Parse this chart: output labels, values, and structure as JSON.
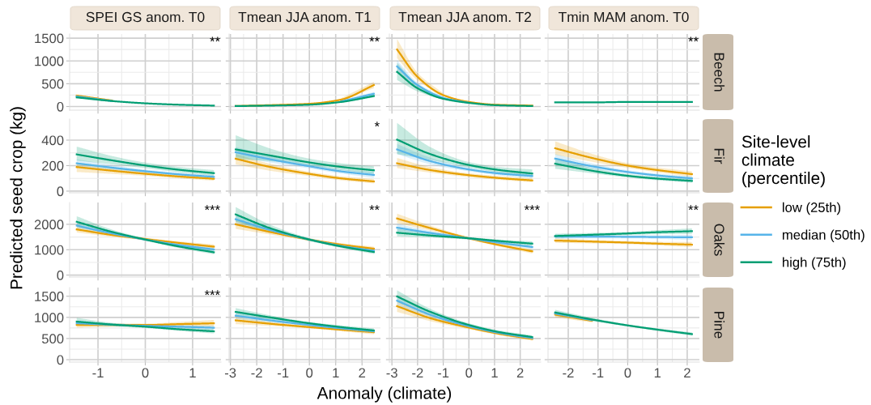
{
  "chart_data": [
    {
      "type": "line",
      "title": "SPEI GS anom. T0",
      "xlabel": "Anomaly (climate)",
      "ylabel": "Predicted seed crop (kg)",
      "legend": "right",
      "legend_title": "Site-level climate (percentile)",
      "x": [
        -1.45,
        -0.7,
        0,
        0.7,
        1.45
      ],
      "series": [
        {
          "name": "low (25th)",
          "color": "#e69f00",
          "values": [
            240,
            130,
            null,
            null,
            null
          ]
        },
        {
          "name": "median (50th)",
          "color": "#56b4e9",
          "values": [
            220,
            120,
            null,
            null,
            null
          ]
        },
        {
          "name": "high (75th)",
          "color": "#009e73",
          "values": [
            200,
            120,
            70,
            40,
            20
          ]
        }
      ],
      "xlim": [
        -1.6,
        1.6
      ],
      "xticks": [
        -1,
        0,
        1
      ],
      "ylim": [
        -80,
        1590
      ],
      "yticks": [
        0,
        500,
        1000,
        1500
      ],
      "grid": true,
      "tick_labels": "y",
      "annotations": [
        "**"
      ]
    },
    {
      "type": "line",
      "title": "Tmean JJA anom. T1",
      "x": [
        -2.8,
        -1.5,
        0,
        1.2,
        2.45
      ],
      "series": [
        {
          "color": "#e69f00",
          "values": [
            10,
            30,
            60,
            150,
            470
          ],
          "lower": [
            null,
            null,
            null,
            130,
            400
          ],
          "upper": [
            null,
            null,
            null,
            180,
            540
          ]
        },
        {
          "color": "#56b4e9",
          "values": [
            null,
            null,
            null,
            110,
            280
          ],
          "lower": [
            null,
            null,
            null,
            100,
            250
          ],
          "upper": [
            null,
            null,
            null,
            130,
            320
          ]
        },
        {
          "color": "#009e73",
          "values": [
            10,
            20,
            40,
            100,
            230
          ],
          "lower": [
            null,
            null,
            null,
            80,
            200
          ],
          "upper": [
            null,
            null,
            null,
            120,
            270
          ]
        }
      ],
      "xlim": [
        -3.05,
        2.7
      ],
      "xticks": [
        -3,
        -2,
        -1,
        0,
        1,
        2
      ],
      "ylim": [
        -80,
        1590
      ],
      "yticks": [
        0,
        500,
        1000,
        1500
      ],
      "grid": true,
      "tick_labels": false,
      "annotations": [
        "**"
      ]
    },
    {
      "type": "line",
      "title": "Tmean JJA anom. T2",
      "x": [
        -2.8,
        -2,
        -1,
        0,
        1,
        2.47
      ],
      "series": [
        {
          "color": "#e69f00",
          "values": [
            1250,
            650,
            250,
            100,
            40,
            20
          ],
          "lower": [
            1060,
            570,
            220,
            null,
            null,
            null
          ],
          "upper": [
            1480,
            740,
            290,
            null,
            null,
            null
          ]
        },
        {
          "color": "#56b4e9",
          "values": [
            880,
            470,
            190,
            80,
            null,
            null
          ],
          "lower": [
            760,
            420,
            170,
            null,
            null,
            null
          ],
          "upper": [
            1010,
            520,
            210,
            null,
            null,
            null
          ]
        },
        {
          "color": "#009e73",
          "values": [
            760,
            400,
            170,
            80,
            30,
            10
          ],
          "lower": [
            580,
            330,
            150,
            null,
            null,
            null
          ],
          "upper": [
            960,
            480,
            200,
            null,
            null,
            null
          ]
        }
      ],
      "xlim": [
        -3.1,
        2.8
      ],
      "xticks": [
        -3,
        -2,
        -1,
        0,
        1,
        2
      ],
      "ylim": [
        -80,
        1590
      ],
      "yticks": [
        0,
        500,
        1000,
        1500
      ],
      "grid": true,
      "tick_labels": false
    },
    {
      "type": "line",
      "title": "Tmin MAM anom. T0",
      "y2label": "Beech",
      "x": [
        -2.44,
        -1.2,
        0,
        1,
        2.16
      ],
      "series": [
        {
          "color": "#009e73",
          "values": [
            90,
            90,
            100,
            100,
            100
          ]
        }
      ],
      "xlim": [
        -2.68,
        2.41
      ],
      "xticks": [
        -2,
        -1,
        0,
        1,
        2
      ],
      "ylim": [
        -80,
        1590
      ],
      "yticks": [
        0,
        500,
        1000,
        1500
      ],
      "grid": true,
      "tick_labels": false,
      "annotations": [
        "**"
      ]
    },
    {
      "type": "line",
      "x": [
        -1.45,
        -0.7,
        0,
        0.7,
        1.45
      ],
      "series": [
        {
          "name": "low (25th)",
          "color": "#e69f00",
          "values": [
            189,
            160,
            136,
            115,
            97
          ],
          "lower": [
            150,
            135,
            120,
            100,
            82
          ],
          "upper": [
            215,
            183,
            152,
            130,
            112
          ]
        },
        {
          "name": "median (50th)",
          "color": "#56b4e9",
          "values": [
            218,
            184,
            156,
            132,
            112
          ],
          "lower": [
            190,
            165,
            143,
            120,
            100
          ],
          "upper": [
            250,
            205,
            170,
            145,
            125
          ]
        },
        {
          "name": "high (75th)",
          "color": "#009e73",
          "values": [
            288,
            241,
            201,
            168,
            141
          ],
          "lower": [
            240,
            210,
            180,
            148,
            120
          ],
          "upper": [
            349,
            275,
            224,
            190,
            165
          ]
        }
      ],
      "xlim": [
        -1.6,
        1.6
      ],
      "xticks": [
        -1,
        0,
        1
      ],
      "ylim": [
        -13,
        565
      ],
      "yticks": [
        0,
        200,
        400
      ],
      "grid": true,
      "tick_labels": "y"
    },
    {
      "type": "line",
      "x": [
        -2.8,
        -1.5,
        0,
        1.2,
        2.45
      ],
      "series": [
        {
          "name": "low (25th)",
          "color": "#e69f00",
          "values": [
            254,
            190,
            135,
            100,
            76
          ],
          "lower": [
            210,
            160,
            118,
            85,
            60
          ],
          "upper": [
            290,
            215,
            152,
            117,
            95
          ]
        },
        {
          "name": "median (50th)",
          "color": "#56b4e9",
          "values": [
            305,
            250,
            195,
            155,
            127
          ],
          "lower": [
            270,
            225,
            178,
            138,
            105
          ],
          "upper": [
            345,
            278,
            212,
            172,
            150
          ]
        },
        {
          "name": "high (75th)",
          "color": "#009e73",
          "values": [
            327,
            280,
            225,
            190,
            163
          ],
          "lower": [
            250,
            235,
            200,
            165,
            135
          ],
          "upper": [
            438,
            335,
            255,
            218,
            195
          ]
        }
      ],
      "xlim": [
        -3.05,
        2.7
      ],
      "xticks": [
        -3,
        -2,
        -1,
        0,
        1,
        2
      ],
      "ylim": [
        -13,
        565
      ],
      "yticks": [
        0,
        200,
        400
      ],
      "grid": true,
      "tick_labels": false,
      "annotations": [
        "*"
      ]
    },
    {
      "type": "line",
      "x": [
        -2.8,
        -1.5,
        0,
        1.2,
        2.47
      ],
      "series": [
        {
          "name": "low (25th)",
          "color": "#e69f00",
          "values": [
            218,
            165,
            125,
            102,
            84
          ],
          "lower": [
            180,
            145,
            110,
            88,
            70
          ],
          "upper": [
            260,
            188,
            140,
            118,
            100
          ]
        },
        {
          "name": "median (50th)",
          "color": "#56b4e9",
          "values": [
            327,
            235,
            170,
            138,
            119
          ],
          "lower": [
            290,
            210,
            155,
            123,
            100
          ],
          "upper": [
            370,
            262,
            185,
            153,
            140
          ]
        },
        {
          "name": "high (75th)",
          "color": "#009e73",
          "values": [
            404,
            290,
            205,
            165,
            138
          ],
          "lower": [
            290,
            245,
            185,
            145,
            110
          ],
          "upper": [
            535,
            345,
            228,
            188,
            170
          ]
        }
      ],
      "xlim": [
        -3.1,
        2.8
      ],
      "xticks": [
        -3,
        -2,
        -1,
        0,
        1,
        2
      ],
      "ylim": [
        -13,
        565
      ],
      "yticks": [
        0,
        200,
        400
      ],
      "grid": true,
      "tick_labels": false
    },
    {
      "type": "line",
      "y2label": "Fir",
      "x": [
        -2.44,
        -1.2,
        0,
        1,
        2.16
      ],
      "series": [
        {
          "name": "low (25th)",
          "color": "#e69f00",
          "values": [
            336,
            260,
            200,
            165,
            133
          ],
          "lower": [
            285,
            230,
            182,
            148,
            112
          ],
          "upper": [
            390,
            292,
            220,
            185,
            155
          ]
        },
        {
          "name": "median (50th)",
          "color": "#56b4e9",
          "values": [
            255,
            195,
            150,
            123,
            100
          ],
          "lower": [
            220,
            175,
            137,
            110,
            85
          ],
          "upper": [
            292,
            217,
            164,
            137,
            116
          ]
        },
        {
          "name": "high (75th)",
          "color": "#009e73",
          "values": [
            215,
            160,
            120,
            98,
            80
          ],
          "lower": [
            175,
            140,
            107,
            85,
            66
          ],
          "upper": [
            258,
            182,
            134,
            112,
            96
          ]
        }
      ],
      "xlim": [
        -2.68,
        2.41
      ],
      "xticks": [
        -2,
        -1,
        0,
        1,
        2
      ],
      "ylim": [
        -13,
        565
      ],
      "yticks": [
        0,
        200,
        400
      ],
      "grid": true,
      "tick_labels": false
    },
    {
      "type": "line",
      "x": [
        -1.45,
        -0.7,
        0,
        0.7,
        1.45
      ],
      "series": [
        {
          "name": "low (25th)",
          "color": "#e69f00",
          "values": [
            1800,
            1580,
            1420,
            1270,
            1120
          ],
          "lower": [
            1680,
            1510,
            1370,
            1210,
            1030
          ],
          "upper": [
            1930,
            1650,
            1470,
            1330,
            1210
          ]
        },
        {
          "name": "median (50th)",
          "color": "#56b4e9",
          "values": [
            1950,
            1640,
            1400,
            1190,
            1010
          ],
          "lower": [
            1820,
            1580,
            1360,
            1140,
            940
          ],
          "upper": [
            2090,
            1700,
            1440,
            1240,
            1080
          ]
        },
        {
          "name": "high (75th)",
          "color": "#009e73",
          "values": [
            2100,
            1700,
            1400,
            1130,
            900
          ],
          "lower": [
            1900,
            1620,
            1350,
            1070,
            820
          ],
          "upper": [
            2320,
            1790,
            1450,
            1190,
            980
          ]
        }
      ],
      "xlim": [
        -1.6,
        1.6
      ],
      "xticks": [
        -1,
        0,
        1
      ],
      "ylim": [
        -76,
        2860
      ],
      "yticks": [
        0,
        1000,
        2000
      ],
      "grid": true,
      "tick_labels": "y",
      "annotations": [
        "***"
      ]
    },
    {
      "type": "line",
      "x": [
        -2.8,
        -1.5,
        0,
        1.2,
        2.45
      ],
      "series": [
        {
          "name": "low (25th)",
          "color": "#e69f00",
          "values": [
            2000,
            1700,
            1400,
            1200,
            1040
          ],
          "lower": [
            1820,
            1600,
            1350,
            1140,
            960
          ],
          "upper": [
            2200,
            1800,
            1450,
            1260,
            1120
          ]
        },
        {
          "name": "median (50th)",
          "color": "#56b4e9",
          "values": [
            2200,
            1780,
            1400,
            1150,
            960
          ],
          "lower": [
            2020,
            1690,
            1350,
            1100,
            890
          ],
          "upper": [
            2400,
            1870,
            1450,
            1200,
            1030
          ]
        },
        {
          "name": "high (75th)",
          "color": "#009e73",
          "values": [
            2390,
            1850,
            1400,
            1130,
            910
          ],
          "lower": [
            2100,
            1720,
            1340,
            1070,
            830
          ],
          "upper": [
            2680,
            1990,
            1460,
            1190,
            990
          ]
        }
      ],
      "xlim": [
        -3.05,
        2.7
      ],
      "xticks": [
        -3,
        -2,
        -1,
        0,
        1,
        2
      ],
      "ylim": [
        -76,
        2860
      ],
      "yticks": [
        0,
        1000,
        2000
      ],
      "grid": true,
      "tick_labels": false,
      "annotations": [
        "**"
      ]
    },
    {
      "type": "line",
      "x": [
        -2.8,
        -1.5,
        0,
        1.2,
        2.47
      ],
      "series": [
        {
          "name": "low (25th)",
          "color": "#e69f00",
          "values": [
            2230,
            1850,
            1450,
            1180,
            935
          ],
          "lower": [
            2050,
            1750,
            1400,
            1120,
            850
          ],
          "upper": [
            2420,
            1950,
            1500,
            1240,
            1020
          ]
        },
        {
          "name": "median (50th)",
          "color": "#56b4e9",
          "values": [
            1870,
            1660,
            1450,
            1270,
            1105
          ],
          "lower": [
            1730,
            1580,
            1400,
            1210,
            1030
          ],
          "upper": [
            2020,
            1740,
            1500,
            1330,
            1180
          ]
        },
        {
          "name": "high (75th)",
          "color": "#009e73",
          "values": [
            1670,
            1560,
            1450,
            1340,
            1240
          ],
          "lower": [
            1520,
            1480,
            1400,
            1280,
            1150
          ],
          "upper": [
            1830,
            1640,
            1500,
            1400,
            1330
          ]
        }
      ],
      "xlim": [
        -3.1,
        2.8
      ],
      "xticks": [
        -3,
        -2,
        -1,
        0,
        1,
        2
      ],
      "ylim": [
        -76,
        2860
      ],
      "yticks": [
        0,
        1000,
        2000
      ],
      "grid": true,
      "tick_labels": false,
      "annotations": [
        "***"
      ]
    },
    {
      "type": "line",
      "y2label": "Oaks",
      "x": [
        -2.44,
        -1.2,
        0,
        1,
        2.16
      ],
      "series": [
        {
          "name": "low (25th)",
          "color": "#e69f00",
          "values": [
            1360,
            1320,
            1280,
            1240,
            1200
          ],
          "lower": [
            1270,
            1250,
            1220,
            1170,
            1100
          ],
          "upper": [
            1450,
            1390,
            1340,
            1310,
            1300
          ]
        },
        {
          "name": "median (50th)",
          "color": "#56b4e9",
          "values": [
            1520,
            1515,
            1510,
            1500,
            1490
          ],
          "lower": [
            1430,
            1450,
            1450,
            1430,
            1390
          ],
          "upper": [
            1610,
            1580,
            1570,
            1570,
            1590
          ]
        },
        {
          "name": "high (75th)",
          "color": "#009e73",
          "values": [
            1540,
            1590,
            1640,
            1690,
            1730
          ],
          "lower": [
            1450,
            1520,
            1580,
            1610,
            1620
          ],
          "upper": [
            1630,
            1660,
            1700,
            1770,
            1840
          ]
        }
      ],
      "xlim": [
        -2.68,
        2.41
      ],
      "xticks": [
        -2,
        -1,
        0,
        1,
        2
      ],
      "ylim": [
        -76,
        2860
      ],
      "yticks": [
        0,
        1000,
        2000
      ],
      "grid": true,
      "tick_labels": false,
      "annotations": [
        "**"
      ]
    },
    {
      "type": "line",
      "x": [
        -1.45,
        -0.7,
        0,
        0.7,
        1.45
      ],
      "series": [
        {
          "name": "low (25th)",
          "color": "#e69f00",
          "values": [
            820,
            820,
            820,
            840,
            860
          ],
          "lower": [
            760,
            780,
            790,
            790,
            780
          ],
          "upper": [
            880,
            860,
            850,
            890,
            940
          ]
        },
        {
          "name": "median (50th)",
          "color": "#56b4e9",
          "values": [
            860,
            825,
            800,
            780,
            755
          ],
          "lower": [
            810,
            790,
            770,
            740,
            700
          ],
          "upper": [
            910,
            860,
            830,
            820,
            810
          ]
        },
        {
          "name": "high (75th)",
          "color": "#009e73",
          "values": [
            900,
            830,
            780,
            720,
            670
          ],
          "lower": [
            820,
            790,
            750,
            680,
            620
          ],
          "upper": [
            990,
            870,
            810,
            760,
            720
          ]
        }
      ],
      "xlim": [
        -1.6,
        1.6
      ],
      "xticks": [
        -1,
        0,
        1
      ],
      "ylim": [
        -57,
        1705
      ],
      "yticks": [
        0,
        500,
        1000,
        1500
      ],
      "grid": true,
      "annotations": [
        "***"
      ]
    },
    {
      "type": "line",
      "x": [
        -2.8,
        -1.5,
        0,
        1.2,
        2.45
      ],
      "series": [
        {
          "name": "low (25th)",
          "color": "#e69f00",
          "values": [
            930,
            850,
            770,
            710,
            650
          ],
          "lower": [
            840,
            800,
            740,
            670,
            600
          ],
          "upper": [
            1020,
            900,
            800,
            750,
            700
          ]
        },
        {
          "name": "median (50th)",
          "color": "#56b4e9",
          "values": [
            1040,
            930,
            820,
            740,
            670
          ],
          "lower": [
            960,
            880,
            790,
            700,
            620
          ],
          "upper": [
            1120,
            980,
            850,
            780,
            720
          ]
        },
        {
          "name": "high (75th)",
          "color": "#009e73",
          "values": [
            1130,
            1000,
            860,
            770,
            690
          ],
          "lower": [
            1040,
            950,
            830,
            730,
            640
          ],
          "upper": [
            1220,
            1050,
            890,
            810,
            740
          ]
        }
      ],
      "xlim": [
        -3.05,
        2.7
      ],
      "xticks": [
        -3,
        -2,
        -1,
        0,
        1,
        2
      ],
      "ylim": [
        -57,
        1705
      ],
      "yticks": [
        0,
        500,
        1000,
        1500
      ],
      "grid": true,
      "tick_labels": "x"
    },
    {
      "type": "line",
      "x": [
        -2.8,
        -1.5,
        0,
        1.2,
        2.47
      ],
      "series": [
        {
          "name": "low (25th)",
          "color": "#e69f00",
          "values": [
            1265,
            980,
            760,
            610,
            490
          ],
          "lower": [
            1130,
            910,
            720,
            575,
            450
          ],
          "upper": [
            1400,
            1050,
            800,
            645,
            530
          ]
        },
        {
          "name": "median (50th)",
          "color": "#56b4e9",
          "values": [
            1395,
            1060,
            790,
            630,
            510
          ],
          "lower": [
            1280,
            1000,
            755,
            595,
            475
          ],
          "upper": [
            1510,
            1120,
            825,
            665,
            545
          ]
        },
        {
          "name": "high (75th)",
          "color": "#009e73",
          "values": [
            1495,
            1130,
            820,
            650,
            535
          ],
          "lower": [
            1360,
            1060,
            780,
            610,
            495
          ],
          "upper": [
            1640,
            1200,
            860,
            690,
            575
          ]
        }
      ],
      "xlim": [
        -3.1,
        2.8
      ],
      "xticks": [
        -3,
        -2,
        -1,
        0,
        1,
        2
      ],
      "ylim": [
        -57,
        1705
      ],
      "yticks": [
        0,
        500,
        1000,
        1500
      ],
      "grid": true,
      "tick_labels": "x"
    },
    {
      "type": "line",
      "y2label": "Pine",
      "x": [
        -2.44,
        -1.2,
        0,
        1,
        2.16
      ],
      "series": [
        {
          "name": "low (25th)",
          "color": "#e69f00",
          "values": [
            1065,
            920,
            null,
            null,
            null
          ],
          "lower": [
            1000,
            880,
            null,
            null,
            null
          ],
          "upper": [
            1130,
            960,
            null,
            null,
            null
          ]
        },
        {
          "name": "median (50th)",
          "color": "#56b4e9",
          "values": [
            1090,
            935,
            null,
            null,
            null
          ],
          "lower": [
            1030,
            900,
            null,
            null,
            null
          ],
          "upper": [
            1150,
            970,
            null,
            null,
            null
          ]
        },
        {
          "name": "high (75th)",
          "color": "#009e73",
          "values": [
            1115,
            950,
            810,
            710,
            605
          ],
          "lower": [
            1050,
            910,
            785,
            680,
            565
          ],
          "upper": [
            1180,
            990,
            835,
            740,
            645
          ]
        }
      ],
      "xlim": [
        -2.68,
        2.41
      ],
      "xticks": [
        -2,
        -1,
        0,
        1,
        2
      ],
      "ylim": [
        -57,
        1705
      ],
      "yticks": [
        0,
        500,
        1000,
        1500
      ],
      "grid": true,
      "tick_labels": "x"
    }
  ]
}
